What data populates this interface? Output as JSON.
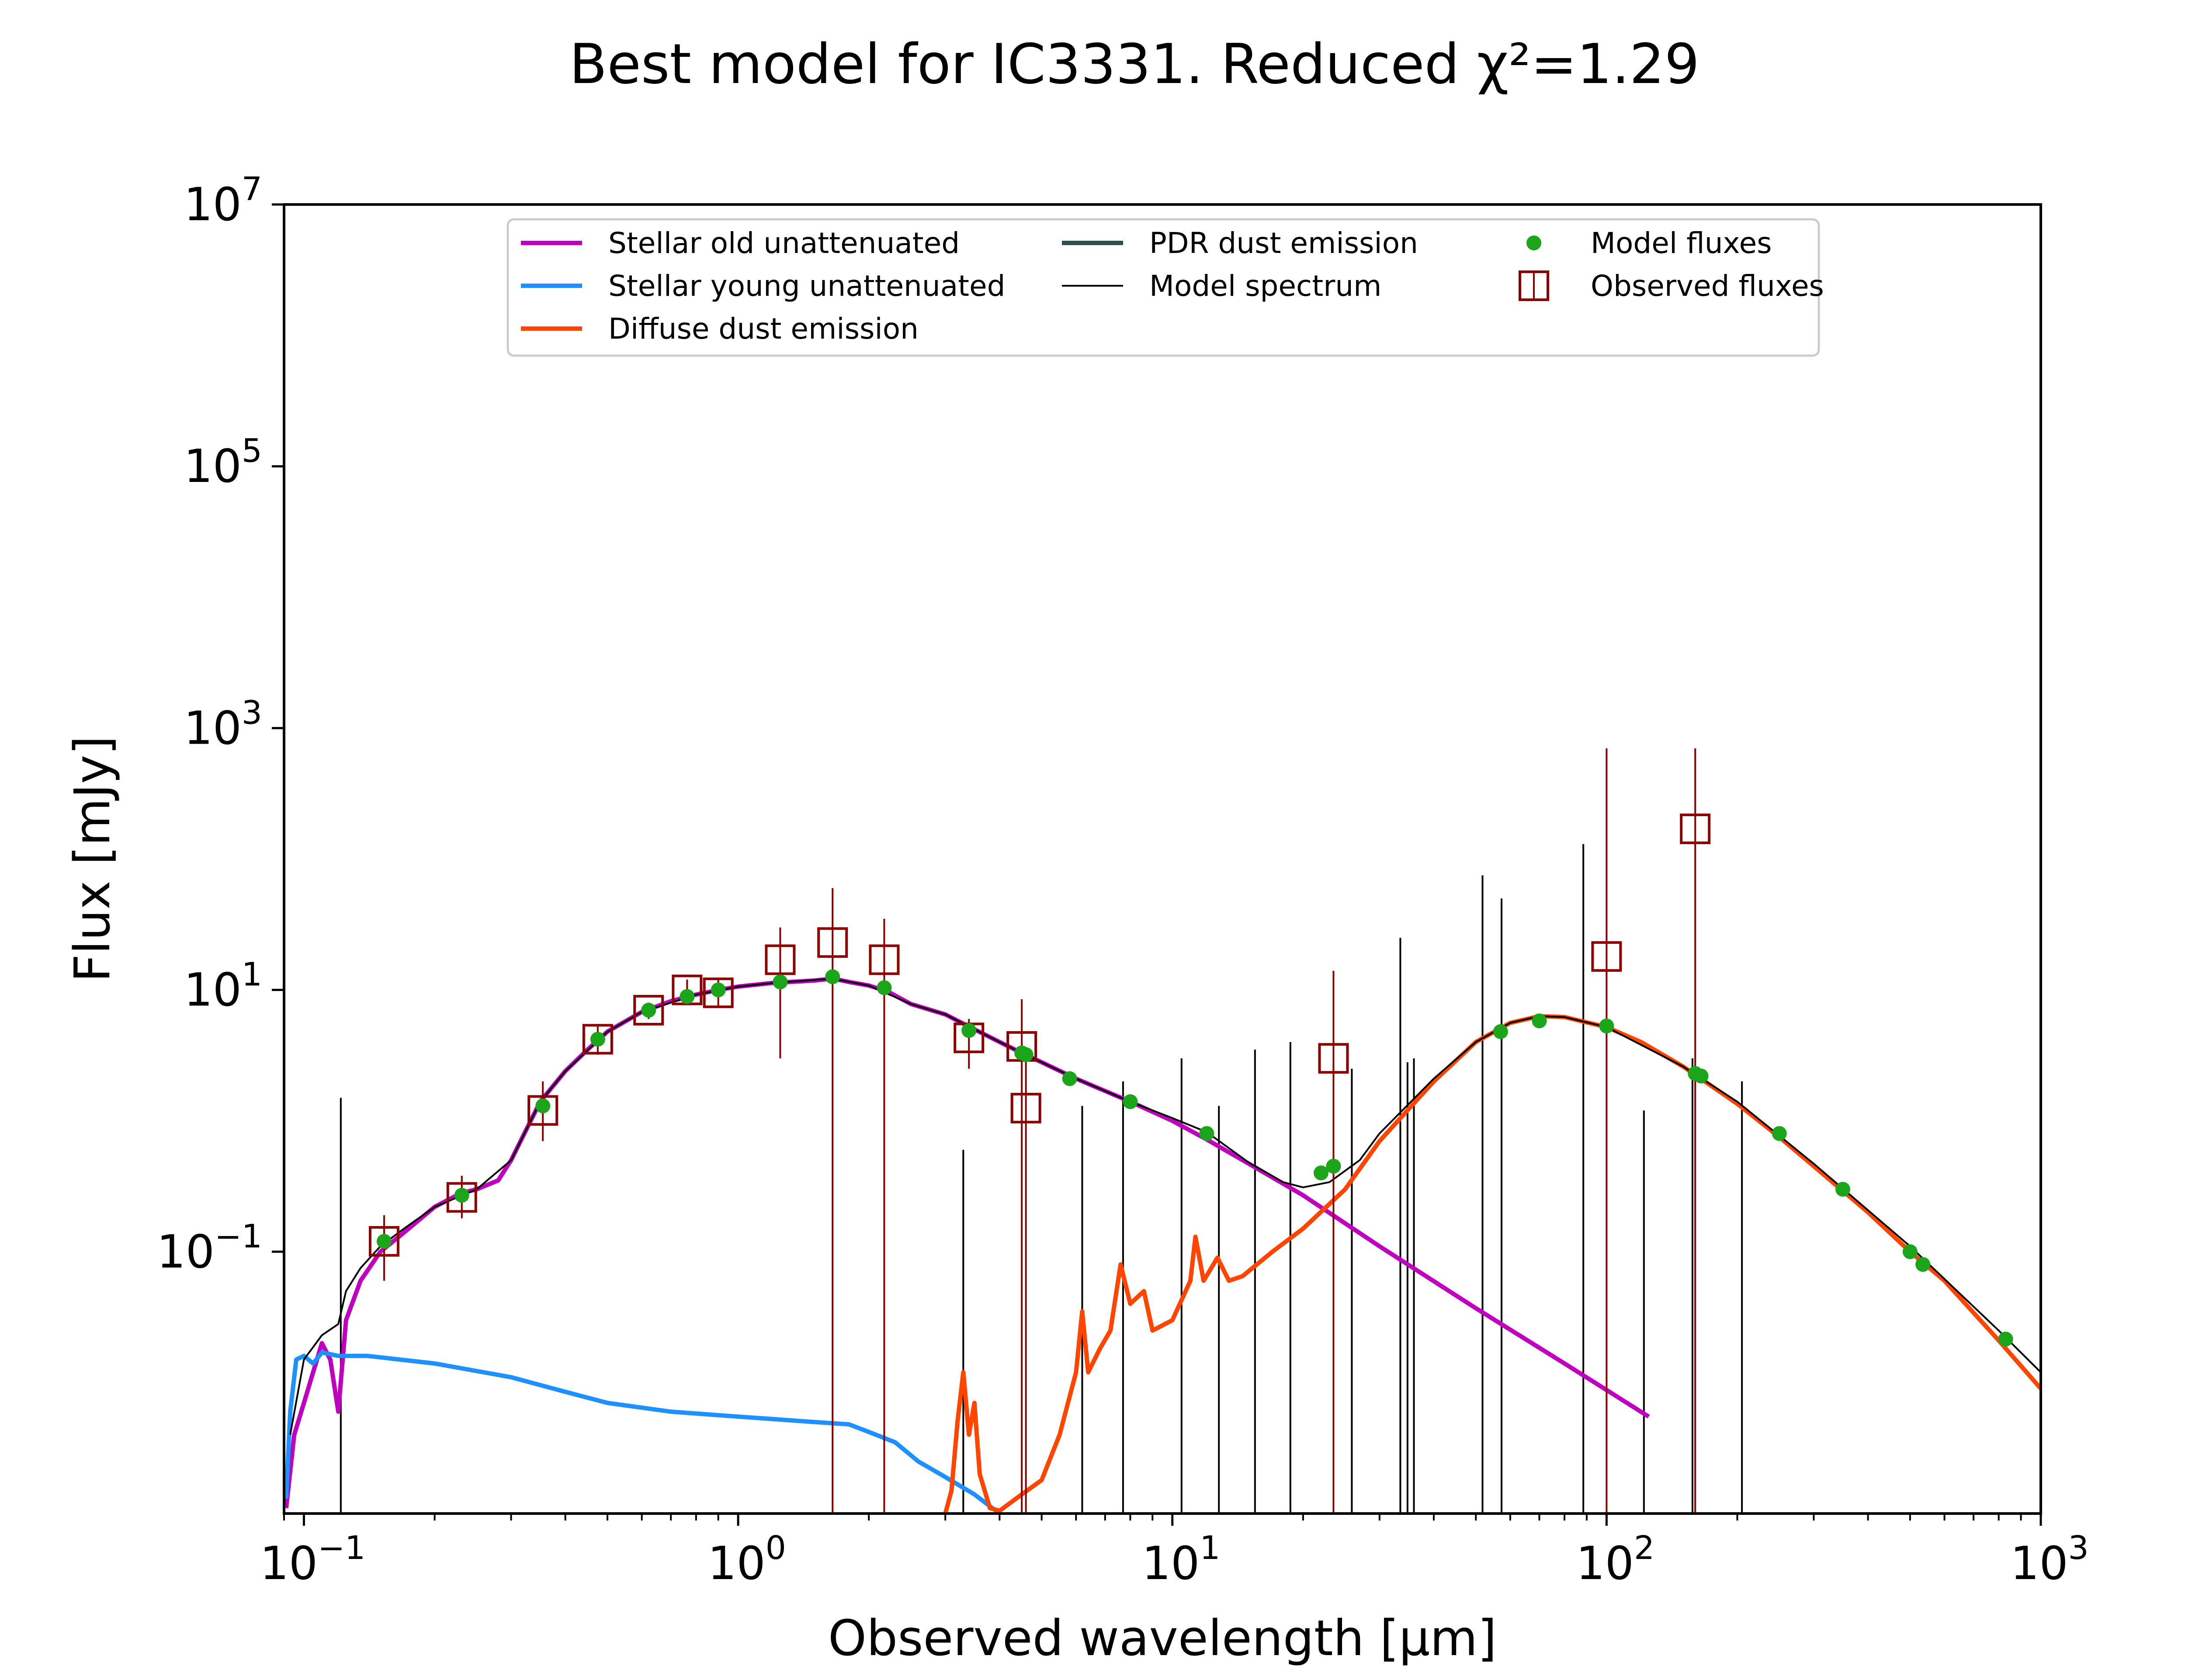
{
  "title": "Best model for IC3331. Reduced χ²=1.29",
  "chart_data": {
    "type": "line",
    "title": "Best model for IC3331. Reduced χ²=1.29",
    "xlabel": "Observed wavelength [μm]",
    "ylabel": "Flux [mJy]",
    "x_scale": "log",
    "y_scale": "log",
    "xlim": [
      0.09,
      1000
    ],
    "ylim": [
      0.001,
      10000000
    ],
    "x_ticks": [
      {
        "base": "10",
        "exp": "−1",
        "value": 0.1
      },
      {
        "base": "10",
        "exp": "0",
        "value": 1
      },
      {
        "base": "10",
        "exp": "1",
        "value": 10
      },
      {
        "base": "10",
        "exp": "2",
        "value": 100
      },
      {
        "base": "10",
        "exp": "3",
        "value": 1000
      }
    ],
    "y_ticks": [
      {
        "base": "10",
        "exp": "−1",
        "value": 0.1
      },
      {
        "base": "10",
        "exp": "1",
        "value": 10
      },
      {
        "base": "10",
        "exp": "3",
        "value": 1000
      },
      {
        "base": "10",
        "exp": "5",
        "value": 100000
      },
      {
        "base": "10",
        "exp": "7",
        "value": 10000000
      }
    ],
    "grid": false,
    "legend_position": "upper-center",
    "legend": [
      {
        "label": "Stellar old unattenuated",
        "color": "#bf00bf",
        "kind": "line"
      },
      {
        "label": "Stellar young unattenuated",
        "color": "#1e90ff",
        "kind": "line"
      },
      {
        "label": "Diffuse dust emission",
        "color": "#ff4500",
        "kind": "line"
      },
      {
        "label": "PDR dust emission",
        "color": "#2f4f4f",
        "kind": "line"
      },
      {
        "label": "Model spectrum",
        "color": "#000000",
        "kind": "thinline"
      },
      {
        "label": "Model fluxes",
        "color": "#1aa51a",
        "kind": "dot"
      },
      {
        "label": "Observed fluxes",
        "color": "#8b0000",
        "kind": "square"
      }
    ],
    "series": [
      {
        "name": "Stellar old unattenuated",
        "color": "#bf00bf",
        "points": [
          [
            0.091,
            0.0011
          ],
          [
            0.095,
            0.004
          ],
          [
            0.1,
            0.007
          ],
          [
            0.105,
            0.012
          ],
          [
            0.11,
            0.02
          ],
          [
            0.115,
            0.015
          ],
          [
            0.12,
            0.006
          ],
          [
            0.125,
            0.03
          ],
          [
            0.135,
            0.06
          ],
          [
            0.15,
            0.1
          ],
          [
            0.17,
            0.14
          ],
          [
            0.2,
            0.22
          ],
          [
            0.23,
            0.28
          ],
          [
            0.25,
            0.3
          ],
          [
            0.28,
            0.35
          ],
          [
            0.3,
            0.5
          ],
          [
            0.35,
            1.4
          ],
          [
            0.4,
            2.4
          ],
          [
            0.45,
            3.5
          ],
          [
            0.5,
            4.8
          ],
          [
            0.6,
            6.8
          ],
          [
            0.7,
            8.2
          ],
          [
            0.8,
            9.2
          ],
          [
            0.9,
            10.0
          ],
          [
            1.0,
            10.6
          ],
          [
            1.2,
            11.3
          ],
          [
            1.5,
            11.8
          ],
          [
            1.65,
            12.2
          ],
          [
            1.8,
            11.5
          ],
          [
            2.0,
            10.8
          ],
          [
            2.2,
            9.8
          ],
          [
            2.5,
            7.8
          ],
          [
            3.0,
            6.5
          ],
          [
            3.5,
            5.0
          ],
          [
            4.0,
            4.0
          ],
          [
            4.5,
            3.3
          ],
          [
            5.0,
            2.8
          ],
          [
            6.0,
            2.1
          ],
          [
            8.0,
            1.4
          ],
          [
            10.0,
            1.0
          ],
          [
            12.0,
            0.72
          ],
          [
            15.0,
            0.47
          ],
          [
            20.0,
            0.27
          ],
          [
            30.0,
            0.11
          ],
          [
            50.0,
            0.037
          ],
          [
            80.0,
            0.014
          ],
          [
            125.0,
            0.0055
          ]
        ]
      },
      {
        "name": "Stellar young unattenuated",
        "color": "#1e90ff",
        "points": [
          [
            0.091,
            0.0013
          ],
          [
            0.093,
            0.006
          ],
          [
            0.096,
            0.015
          ],
          [
            0.1,
            0.016
          ],
          [
            0.105,
            0.014
          ],
          [
            0.11,
            0.017
          ],
          [
            0.12,
            0.016
          ],
          [
            0.14,
            0.016
          ],
          [
            0.2,
            0.014
          ],
          [
            0.3,
            0.011
          ],
          [
            0.4,
            0.0085
          ],
          [
            0.5,
            0.007
          ],
          [
            0.7,
            0.006
          ],
          [
            1.0,
            0.0055
          ],
          [
            1.5,
            0.005
          ],
          [
            1.8,
            0.0048
          ],
          [
            2.0,
            0.0042
          ],
          [
            2.3,
            0.0035
          ],
          [
            2.6,
            0.0025
          ],
          [
            3.0,
            0.0019
          ],
          [
            3.5,
            0.0014
          ],
          [
            4.0,
            0.001
          ]
        ]
      },
      {
        "name": "Diffuse dust emission",
        "color": "#ff4500",
        "points": [
          [
            3.0,
            0.001
          ],
          [
            3.1,
            0.0015
          ],
          [
            3.2,
            0.005
          ],
          [
            3.3,
            0.012
          ],
          [
            3.4,
            0.004
          ],
          [
            3.5,
            0.007
          ],
          [
            3.6,
            0.002
          ],
          [
            3.8,
            0.0011
          ],
          [
            4.0,
            0.00105
          ],
          [
            4.5,
            0.0014
          ],
          [
            5.0,
            0.0018
          ],
          [
            5.5,
            0.004
          ],
          [
            6.0,
            0.012
          ],
          [
            6.2,
            0.035
          ],
          [
            6.4,
            0.012
          ],
          [
            6.8,
            0.018
          ],
          [
            7.2,
            0.025
          ],
          [
            7.6,
            0.08
          ],
          [
            8.0,
            0.04
          ],
          [
            8.6,
            0.05
          ],
          [
            9.0,
            0.025
          ],
          [
            10.0,
            0.03
          ],
          [
            11.0,
            0.06
          ],
          [
            11.3,
            0.13
          ],
          [
            11.8,
            0.06
          ],
          [
            12.7,
            0.09
          ],
          [
            13.5,
            0.06
          ],
          [
            14.5,
            0.065
          ],
          [
            17.0,
            0.1
          ],
          [
            20.0,
            0.15
          ],
          [
            25.0,
            0.3
          ],
          [
            30.0,
            0.7
          ],
          [
            40.0,
            2.0
          ],
          [
            50.0,
            4.0
          ],
          [
            60.0,
            5.6
          ],
          [
            70.0,
            6.3
          ],
          [
            80.0,
            6.2
          ],
          [
            100.0,
            5.2
          ],
          [
            120.0,
            4.0
          ],
          [
            150.0,
            2.6
          ],
          [
            200.0,
            1.35
          ],
          [
            250.0,
            0.75
          ],
          [
            300.0,
            0.45
          ],
          [
            400.0,
            0.2
          ],
          [
            500.0,
            0.1
          ],
          [
            600.0,
            0.06
          ],
          [
            800.0,
            0.021
          ],
          [
            1000.0,
            0.009
          ]
        ]
      },
      {
        "name": "Model spectrum",
        "color": "#000000",
        "points": [
          [
            0.093,
            0.004
          ],
          [
            0.1,
            0.015
          ],
          [
            0.11,
            0.023
          ],
          [
            0.12,
            0.028
          ],
          [
            0.125,
            0.05
          ],
          [
            0.135,
            0.075
          ],
          [
            0.15,
            0.11
          ],
          [
            0.17,
            0.15
          ],
          [
            0.2,
            0.22
          ],
          [
            0.25,
            0.3
          ],
          [
            0.3,
            0.5
          ],
          [
            0.35,
            1.4
          ],
          [
            0.4,
            2.4
          ],
          [
            0.5,
            4.8
          ],
          [
            0.6,
            6.8
          ],
          [
            0.8,
            9.2
          ],
          [
            1.0,
            10.6
          ],
          [
            1.2,
            11.3
          ],
          [
            1.65,
            12.2
          ],
          [
            2.0,
            10.8
          ],
          [
            2.5,
            7.8
          ],
          [
            3.0,
            6.5
          ],
          [
            3.5,
            5.0
          ],
          [
            4.0,
            4.0
          ],
          [
            4.5,
            3.3
          ],
          [
            5.0,
            2.8
          ],
          [
            6.0,
            2.1
          ],
          [
            8.0,
            1.4
          ],
          [
            10.0,
            1.05
          ],
          [
            12.0,
            0.82
          ],
          [
            15.0,
            0.48
          ],
          [
            18.0,
            0.34
          ],
          [
            20.0,
            0.31
          ],
          [
            23.0,
            0.34
          ],
          [
            27.0,
            0.5
          ],
          [
            30.0,
            0.8
          ],
          [
            40.0,
            2.1
          ],
          [
            50.0,
            4.0
          ],
          [
            60.0,
            5.6
          ],
          [
            70.0,
            6.3
          ],
          [
            80.0,
            6.2
          ],
          [
            100.0,
            5.2
          ],
          [
            150.0,
            2.6
          ],
          [
            200.0,
            1.4
          ],
          [
            300.0,
            0.47
          ],
          [
            500.0,
            0.11
          ],
          [
            800.0,
            0.025
          ],
          [
            1000.0,
            0.012
          ]
        ]
      }
    ],
    "emission_lines": [
      [
        0.1216,
        1.5
      ],
      [
        3.3,
        0.6
      ],
      [
        6.2,
        1.3
      ],
      [
        7.7,
        2.0
      ],
      [
        10.5,
        3.0
      ],
      [
        12.8,
        1.3
      ],
      [
        15.5,
        3.5
      ],
      [
        18.7,
        4.0
      ],
      [
        25.9,
        2.5
      ],
      [
        33.5,
        25.0
      ],
      [
        34.8,
        2.8
      ],
      [
        36.0,
        3.0
      ],
      [
        51.8,
        75.0
      ],
      [
        57.3,
        50.0
      ],
      [
        88.4,
        130.0
      ],
      [
        121.9,
        1.2
      ],
      [
        157.7,
        3.0
      ],
      [
        205.0,
        2.0
      ]
    ],
    "model_fluxes": {
      "name": "Model fluxes",
      "color": "#1aa51a",
      "points": [
        [
          0.153,
          0.12
        ],
        [
          0.231,
          0.27
        ],
        [
          0.355,
          1.3
        ],
        [
          0.475,
          4.2
        ],
        [
          0.622,
          7.0
        ],
        [
          0.763,
          8.9
        ],
        [
          0.9,
          10.0
        ],
        [
          1.25,
          11.5
        ],
        [
          1.65,
          12.6
        ],
        [
          2.17,
          10.4
        ],
        [
          3.4,
          4.9
        ],
        [
          4.5,
          3.3
        ],
        [
          4.6,
          3.2
        ],
        [
          5.8,
          2.1
        ],
        [
          8.0,
          1.4
        ],
        [
          12.0,
          0.8
        ],
        [
          22.0,
          0.4
        ],
        [
          23.5,
          0.45
        ],
        [
          57.0,
          4.8
        ],
        [
          70.0,
          5.8
        ],
        [
          100.0,
          5.3
        ],
        [
          160.0,
          2.3
        ],
        [
          165.0,
          2.2
        ],
        [
          250.0,
          0.8
        ],
        [
          350.0,
          0.3
        ],
        [
          500.0,
          0.1
        ],
        [
          535.0,
          0.08
        ],
        [
          830.0,
          0.0215
        ]
      ]
    },
    "observed_fluxes": {
      "name": "Observed fluxes",
      "color": "#8b0000",
      "points": [
        {
          "x": 0.153,
          "y": 0.12,
          "lo": 0.06,
          "hi": 0.19
        },
        {
          "x": 0.231,
          "y": 0.26,
          "lo": 0.18,
          "hi": 0.38
        },
        {
          "x": 0.355,
          "y": 1.2,
          "lo": 0.7,
          "hi": 2.0
        },
        {
          "x": 0.475,
          "y": 4.2,
          "lo": 3.2,
          "hi": 5.4
        },
        {
          "x": 0.622,
          "y": 7.0,
          "lo": 6.0,
          "hi": 8.0
        },
        {
          "x": 0.763,
          "y": 10.0,
          "lo": 8.3,
          "hi": 12.0
        },
        {
          "x": 0.9,
          "y": 9.5,
          "lo": 7.5,
          "hi": 12.0
        },
        {
          "x": 1.25,
          "y": 17.0,
          "lo": 3.0,
          "hi": 30.0
        },
        {
          "x": 1.65,
          "y": 23.0,
          "lo": 0.001,
          "hi": 60.0
        },
        {
          "x": 2.17,
          "y": 17.0,
          "lo": 0.001,
          "hi": 35.0
        },
        {
          "x": 3.4,
          "y": 4.3,
          "lo": 2.5,
          "hi": 6.0
        },
        {
          "x": 4.5,
          "y": 3.7,
          "lo": 0.001,
          "hi": 8.5
        },
        {
          "x": 4.6,
          "y": 1.25,
          "lo": 0.001,
          "hi": 3.0
        },
        {
          "x": 23.5,
          "y": 3.0,
          "lo": 0.001,
          "hi": 14.0
        },
        {
          "x": 100.0,
          "y": 18.0,
          "lo": 0.001,
          "hi": 700.0
        },
        {
          "x": 160.0,
          "y": 170.0,
          "lo": 0.001,
          "hi": 700.0
        }
      ]
    }
  }
}
